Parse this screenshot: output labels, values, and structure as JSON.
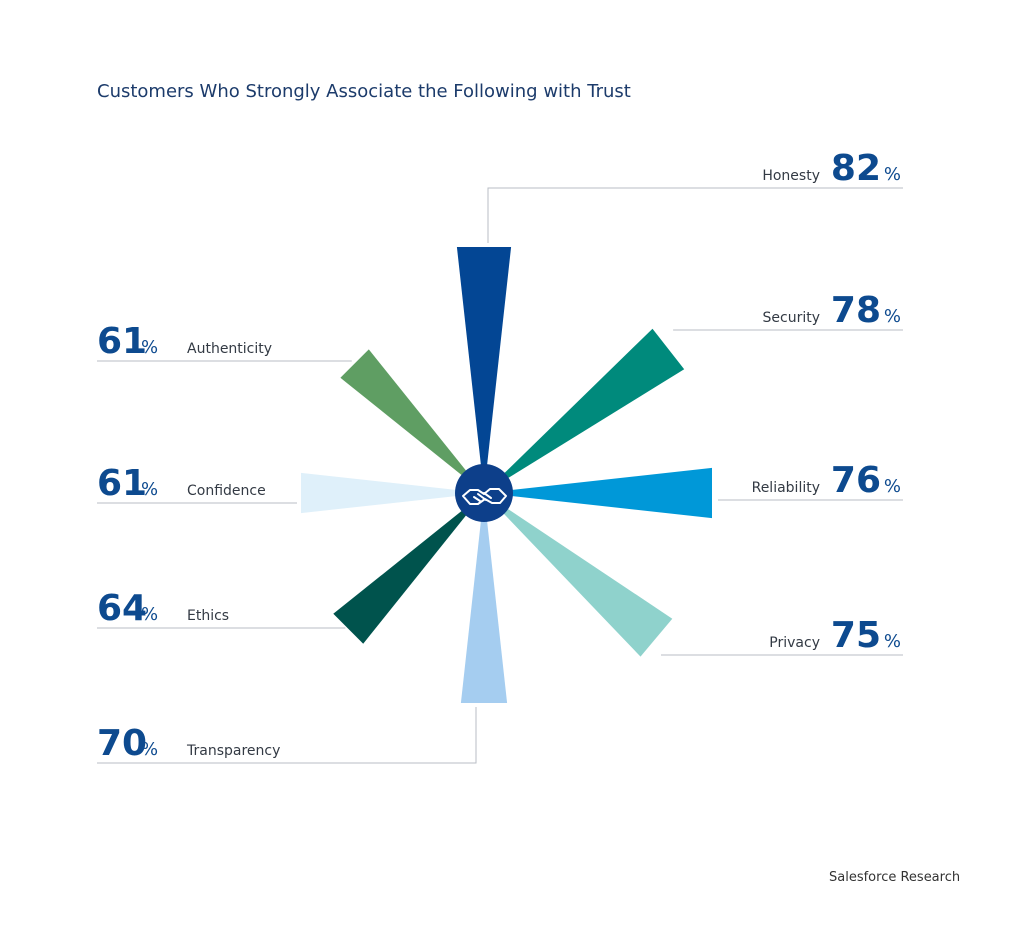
{
  "chart_data": {
    "type": "radial-bar",
    "title": "Customers Who Strongly Associate the Following with Trust",
    "unit": "%",
    "source": "Salesforce Research",
    "center_icon": "handshake-icon",
    "series": [
      {
        "label": "Honesty",
        "value": 82,
        "color": "#034694",
        "side": "right"
      },
      {
        "label": "Security",
        "value": 78,
        "color": "#008a7c",
        "side": "right"
      },
      {
        "label": "Reliability",
        "value": 76,
        "color": "#0098d8",
        "side": "right"
      },
      {
        "label": "Privacy",
        "value": 75,
        "color": "#8fd2cc",
        "side": "right"
      },
      {
        "label": "Transparency",
        "value": 70,
        "color": "#a5cdf0",
        "side": "left"
      },
      {
        "label": "Ethics",
        "value": 64,
        "color": "#00534d",
        "side": "left"
      },
      {
        "label": "Confidence",
        "value": 61,
        "color": "#dff0fa",
        "side": "left"
      },
      {
        "label": "Authenticity",
        "value": 61,
        "color": "#5f9e63",
        "side": "left"
      }
    ]
  }
}
